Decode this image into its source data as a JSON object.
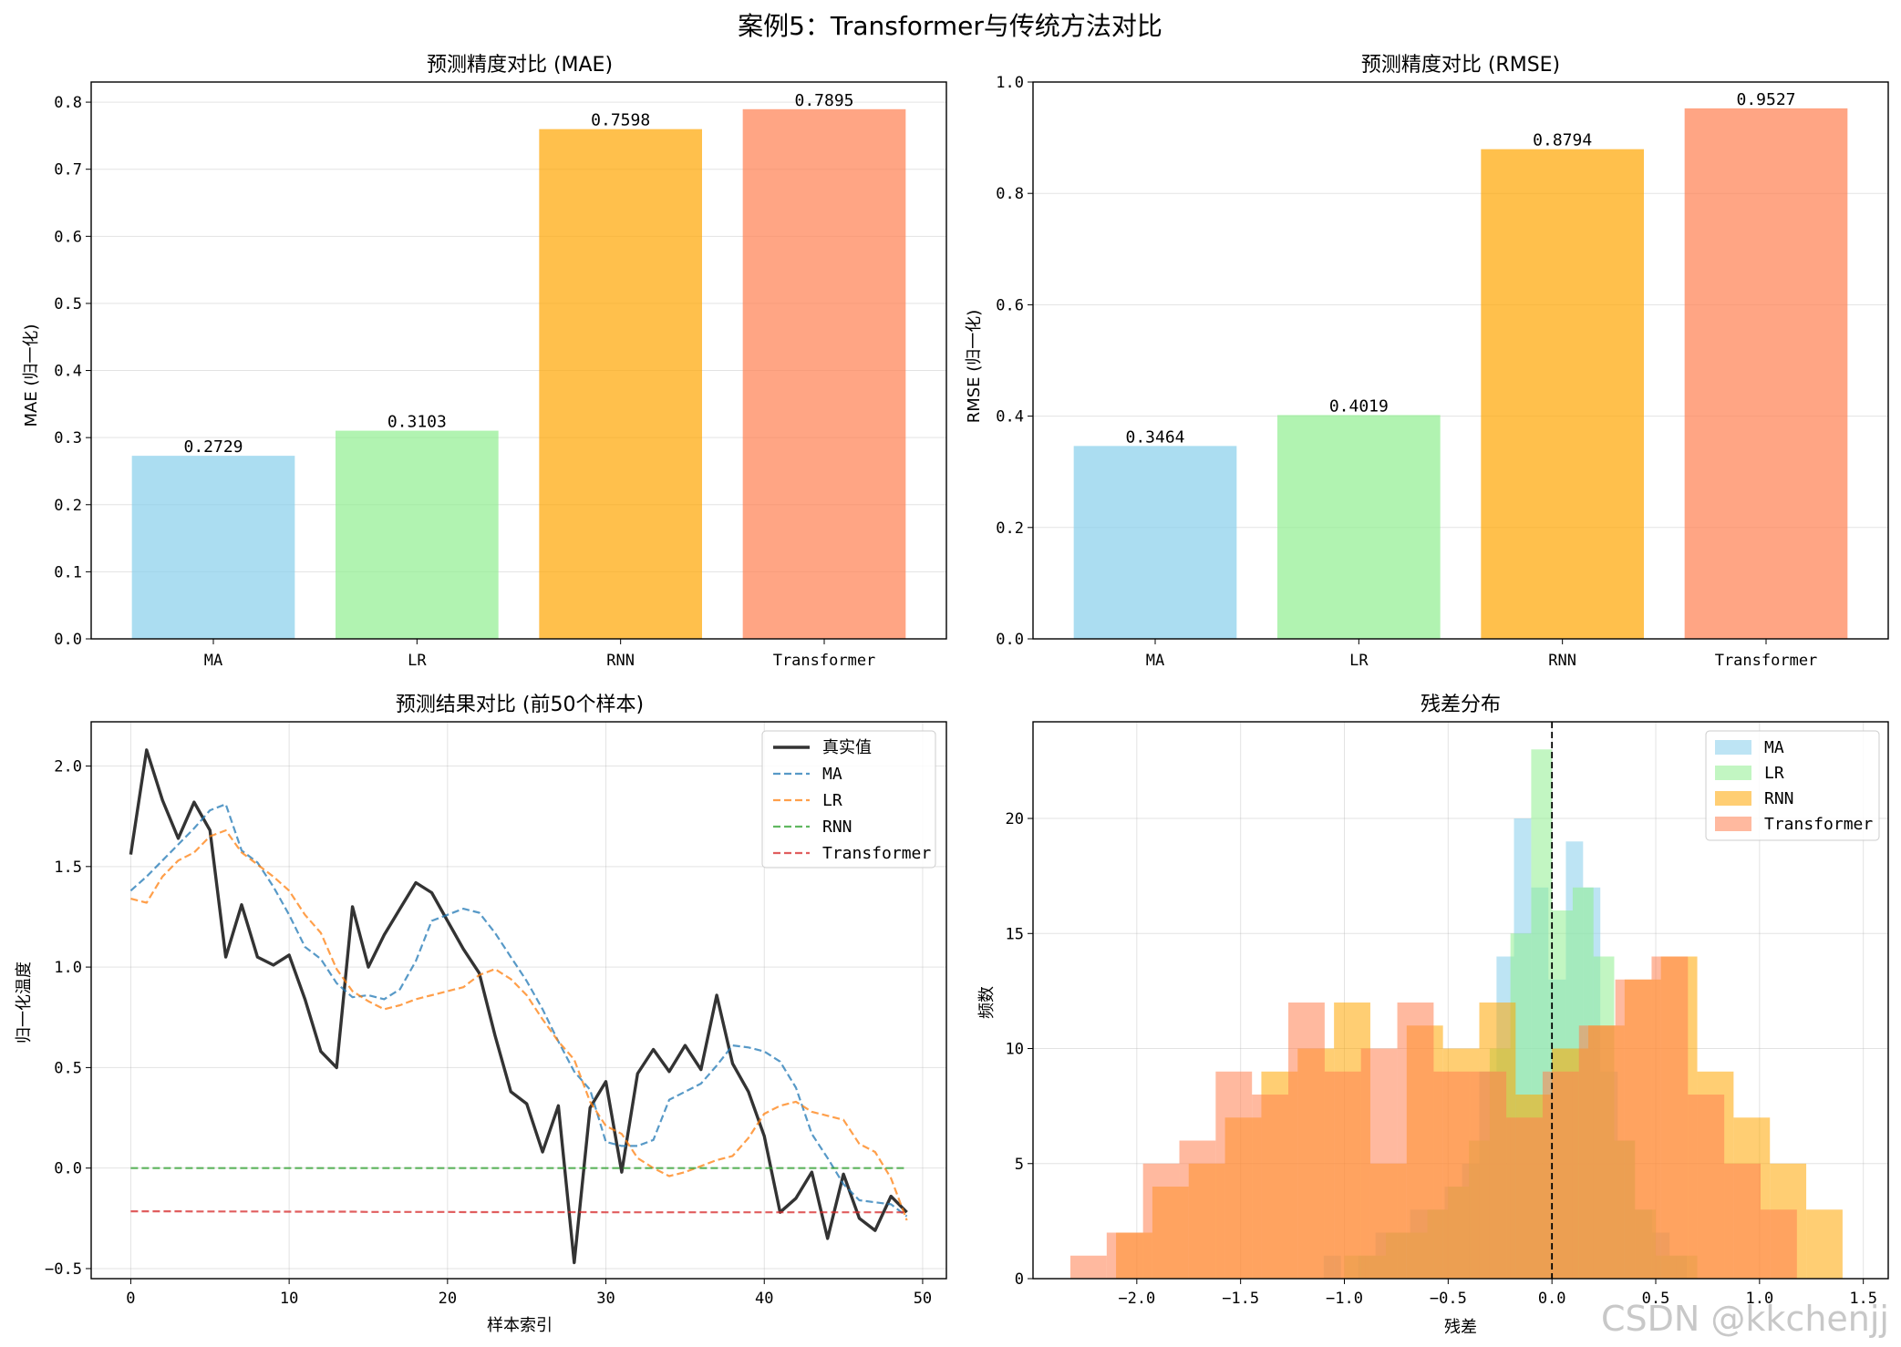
{
  "figure": {
    "suptitle": "案例5：Transformer与传统方法对比",
    "watermark": "CSDN @kkchenjj"
  },
  "colors": {
    "MA": "#87ceeb",
    "LR": "#90ee90",
    "RNN": "#ffa500",
    "Transformer": "#ff7f50",
    "true_line": "#333333",
    "ma_line": "#1f77b4",
    "lr_line": "#ff7f0e",
    "rnn_line": "#2ca02c",
    "tf_line": "#d62728"
  },
  "chart_data": [
    {
      "id": "mae",
      "type": "bar",
      "title": "预测精度对比 (MAE)",
      "xlabel": "",
      "ylabel": "MAE (归一化)",
      "categories": [
        "MA",
        "LR",
        "RNN",
        "Transformer"
      ],
      "values": [
        0.2729,
        0.3103,
        0.7598,
        0.7895
      ],
      "value_labels": [
        "0.2729",
        "0.3103",
        "0.7598",
        "0.7895"
      ],
      "ylim": [
        0,
        0.83
      ],
      "yticks": [
        0.0,
        0.1,
        0.2,
        0.3,
        0.4,
        0.5,
        0.6,
        0.7,
        0.8
      ],
      "ytick_labels": [
        "0.0",
        "0.1",
        "0.2",
        "0.3",
        "0.4",
        "0.5",
        "0.6",
        "0.7",
        "0.8"
      ],
      "grid": "y"
    },
    {
      "id": "rmse",
      "type": "bar",
      "title": "预测精度对比 (RMSE)",
      "xlabel": "",
      "ylabel": "RMSE (归一化)",
      "categories": [
        "MA",
        "LR",
        "RNN",
        "Transformer"
      ],
      "values": [
        0.3464,
        0.4019,
        0.8794,
        0.9527
      ],
      "value_labels": [
        "0.3464",
        "0.4019",
        "0.8794",
        "0.9527"
      ],
      "ylim": [
        0,
        1.0
      ],
      "yticks": [
        0.0,
        0.2,
        0.4,
        0.6,
        0.8,
        1.0
      ],
      "ytick_labels": [
        "0.0",
        "0.2",
        "0.4",
        "0.6",
        "0.8",
        "1.0"
      ],
      "grid": "y"
    },
    {
      "id": "pred",
      "type": "line",
      "title": "预测结果对比 (前50个样本)",
      "xlabel": "样本索引",
      "ylabel": "归一化温度",
      "xlim": [
        -2.5,
        51.5
      ],
      "ylim": [
        -0.55,
        2.22
      ],
      "xticks": [
        0,
        10,
        20,
        30,
        40,
        50
      ],
      "xtick_labels": [
        "0",
        "10",
        "20",
        "30",
        "40",
        "50"
      ],
      "yticks": [
        -0.5,
        0.0,
        0.5,
        1.0,
        1.5,
        2.0
      ],
      "ytick_labels": [
        "−0.5",
        "0.0",
        "0.5",
        "1.0",
        "1.5",
        "2.0"
      ],
      "legend": "upper right",
      "grid": "both",
      "series": [
        {
          "name": "真实值",
          "style": "solid",
          "values": [
            1.56,
            2.08,
            1.83,
            1.64,
            1.82,
            1.68,
            1.05,
            1.31,
            1.05,
            1.01,
            1.06,
            0.84,
            0.58,
            0.5,
            1.3,
            1.0,
            1.16,
            1.29,
            1.42,
            1.37,
            1.23,
            1.09,
            0.97,
            0.66,
            0.38,
            0.32,
            0.08,
            0.31,
            -0.47,
            0.3,
            0.43,
            -0.02,
            0.47,
            0.59,
            0.48,
            0.61,
            0.49,
            0.86,
            0.52,
            0.38,
            0.16,
            -0.22,
            -0.15,
            -0.02,
            -0.35,
            -0.03,
            -0.25,
            -0.31,
            -0.14,
            -0.22
          ]
        },
        {
          "name": "MA",
          "style": "dashed",
          "values": [
            1.38,
            1.45,
            1.53,
            1.61,
            1.69,
            1.78,
            1.81,
            1.58,
            1.52,
            1.4,
            1.26,
            1.1,
            1.04,
            0.92,
            0.85,
            0.86,
            0.84,
            0.89,
            1.03,
            1.23,
            1.26,
            1.29,
            1.27,
            1.17,
            1.05,
            0.93,
            0.79,
            0.63,
            0.48,
            0.39,
            0.13,
            0.11,
            0.11,
            0.14,
            0.34,
            0.38,
            0.42,
            0.51,
            0.61,
            0.6,
            0.58,
            0.53,
            0.4,
            0.17,
            0.05,
            -0.08,
            -0.16,
            -0.17,
            -0.18,
            -0.24
          ]
        },
        {
          "name": "LR",
          "style": "dashed",
          "values": [
            1.34,
            1.32,
            1.45,
            1.53,
            1.57,
            1.65,
            1.68,
            1.57,
            1.51,
            1.45,
            1.38,
            1.26,
            1.17,
            0.99,
            0.88,
            0.83,
            0.79,
            0.81,
            0.84,
            0.86,
            0.88,
            0.9,
            0.96,
            0.99,
            0.94,
            0.86,
            0.74,
            0.63,
            0.54,
            0.33,
            0.21,
            0.17,
            0.05,
            0.0,
            -0.04,
            -0.02,
            0.01,
            0.04,
            0.06,
            0.15,
            0.27,
            0.31,
            0.33,
            0.28,
            0.26,
            0.24,
            0.12,
            0.08,
            -0.05,
            -0.26
          ]
        },
        {
          "name": "RNN",
          "style": "dashed",
          "values": [
            0.0,
            0.0,
            0.0,
            0.0,
            0.0,
            0.0,
            0.0,
            0.0,
            0.0,
            0.0,
            0.0,
            0.0,
            0.0,
            0.0,
            0.0,
            0.0,
            0.0,
            0.0,
            0.0,
            0.0,
            0.0,
            0.0,
            0.0,
            0.0,
            0.0,
            0.0,
            0.0,
            0.0,
            0.0,
            0.0,
            0.0,
            0.0,
            0.0,
            0.0,
            0.0,
            0.0,
            0.0,
            0.0,
            0.0,
            0.0,
            0.0,
            0.0,
            0.0,
            0.0,
            0.0,
            0.0,
            0.0,
            0.0,
            0.0,
            0.0
          ]
        },
        {
          "name": "Transformer",
          "style": "dashed",
          "values": [
            -0.215,
            -0.215,
            -0.215,
            -0.215,
            -0.216,
            -0.216,
            -0.216,
            -0.216,
            -0.216,
            -0.217,
            -0.217,
            -0.217,
            -0.217,
            -0.217,
            -0.217,
            -0.218,
            -0.218,
            -0.218,
            -0.218,
            -0.218,
            -0.218,
            -0.219,
            -0.219,
            -0.219,
            -0.219,
            -0.219,
            -0.219,
            -0.219,
            -0.219,
            -0.219,
            -0.22,
            -0.22,
            -0.22,
            -0.22,
            -0.22,
            -0.22,
            -0.22,
            -0.22,
            -0.22,
            -0.22,
            -0.22,
            -0.22,
            -0.22,
            -0.22,
            -0.22,
            -0.22,
            -0.22,
            -0.22,
            -0.22,
            -0.22
          ]
        }
      ]
    },
    {
      "id": "resid",
      "type": "histogram",
      "title": "残差分布",
      "xlabel": "残差",
      "ylabel": "频数",
      "xlim": [
        -2.5,
        1.62
      ],
      "ylim": [
        0,
        24.2
      ],
      "xticks": [
        -2.0,
        -1.5,
        -1.0,
        -0.5,
        0.0,
        0.5,
        1.0,
        1.5
      ],
      "xtick_labels": [
        "−2.0",
        "−1.5",
        "−1.0",
        "−0.5",
        "0.0",
        "0.5",
        "1.0",
        "1.5"
      ],
      "yticks": [
        0,
        5,
        10,
        15,
        20
      ],
      "ytick_labels": [
        "0",
        "5",
        "10",
        "15",
        "20"
      ],
      "vline": 0.0,
      "legend": "upper right",
      "grid": "both",
      "series": [
        {
          "name": "MA",
          "edges": [
            -1.1,
            -1.017,
            -0.933,
            -0.85,
            -0.767,
            -0.683,
            -0.6,
            -0.517,
            -0.433,
            -0.35,
            -0.267,
            -0.183,
            -0.1,
            -0.017,
            0.067,
            0.15,
            0.233,
            0.317,
            0.4,
            0.483,
            0.567,
            0.65
          ],
          "counts": [
            1,
            0,
            1,
            2,
            2,
            3,
            3,
            4,
            5,
            9,
            14,
            20,
            17,
            13,
            19,
            17,
            9,
            6,
            3,
            2,
            1
          ]
        },
        {
          "name": "LR",
          "edges": [
            -1.0,
            -0.9,
            -0.8,
            -0.7,
            -0.6,
            -0.5,
            -0.4,
            -0.3,
            -0.2,
            -0.1,
            0.0,
            0.1,
            0.2,
            0.3,
            0.4,
            0.5,
            0.6,
            0.7
          ],
          "counts": [
            1,
            1,
            2,
            2,
            3,
            4,
            6,
            10,
            15,
            23,
            16,
            17,
            14,
            6,
            3,
            1,
            1
          ]
        },
        {
          "name": "RNN",
          "edges": [
            -2.1,
            -1.925,
            -1.75,
            -1.575,
            -1.4,
            -1.225,
            -1.05,
            -0.875,
            -0.7,
            -0.525,
            -0.35,
            -0.175,
            0.0,
            0.175,
            0.35,
            0.525,
            0.7,
            0.875,
            1.05,
            1.225,
            1.4
          ],
          "counts": [
            2,
            4,
            5,
            7,
            9,
            10,
            12,
            5,
            11,
            10,
            12,
            8,
            10,
            11,
            13,
            14,
            9,
            7,
            5,
            3
          ]
        },
        {
          "name": "Transformer",
          "edges": [
            -2.32,
            -2.145,
            -1.97,
            -1.795,
            -1.62,
            -1.445,
            -1.27,
            -1.095,
            -0.92,
            -0.745,
            -0.57,
            -0.395,
            -0.22,
            -0.045,
            0.13,
            0.305,
            0.48,
            0.655,
            0.83,
            1.005,
            1.18
          ],
          "counts": [
            1,
            2,
            5,
            6,
            9,
            8,
            12,
            9,
            10,
            12,
            9,
            9,
            7,
            9,
            11,
            13,
            14,
            8,
            5,
            3
          ]
        }
      ]
    }
  ]
}
